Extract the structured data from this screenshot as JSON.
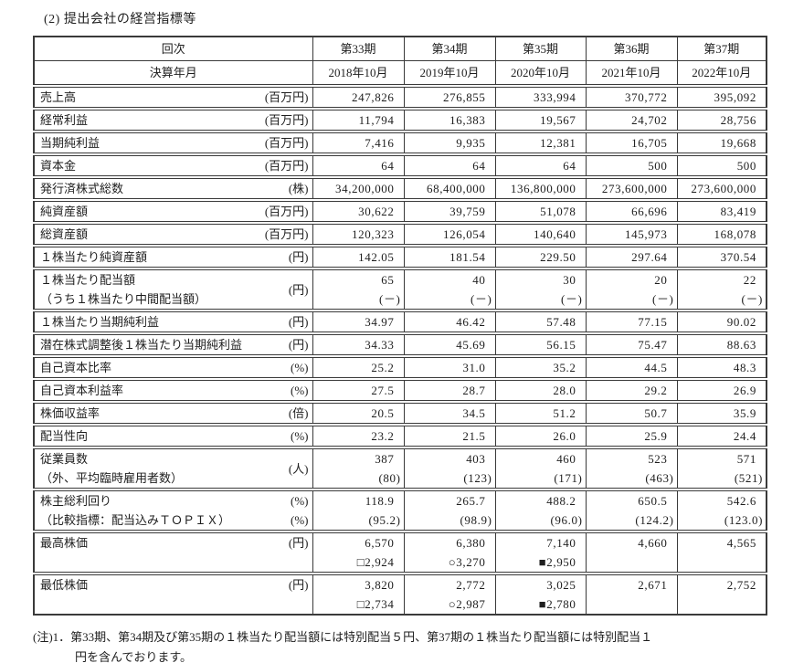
{
  "page_title": "(2) 提出会社の経営指標等",
  "table": {
    "header_rows": [
      {
        "label": "回次",
        "cells": [
          "第33期",
          "第34期",
          "第35期",
          "第36期",
          "第37期"
        ]
      },
      {
        "label": "決算年月",
        "cells": [
          "2018年10月",
          "2019年10月",
          "2020年10月",
          "2021年10月",
          "2022年10月"
        ]
      }
    ],
    "rows": [
      {
        "label": [
          "売上高"
        ],
        "unit": [
          "(百万円)"
        ],
        "values": [
          [
            "247,826"
          ],
          [
            "276,855"
          ],
          [
            "333,994"
          ],
          [
            "370,772"
          ],
          [
            "395,092"
          ]
        ]
      },
      {
        "label": [
          "経常利益"
        ],
        "unit": [
          "(百万円)"
        ],
        "values": [
          [
            "11,794"
          ],
          [
            "16,383"
          ],
          [
            "19,567"
          ],
          [
            "24,702"
          ],
          [
            "28,756"
          ]
        ]
      },
      {
        "label": [
          "当期純利益"
        ],
        "unit": [
          "(百万円)"
        ],
        "values": [
          [
            "7,416"
          ],
          [
            "9,935"
          ],
          [
            "12,381"
          ],
          [
            "16,705"
          ],
          [
            "19,668"
          ]
        ]
      },
      {
        "label": [
          "資本金"
        ],
        "unit": [
          "(百万円)"
        ],
        "values": [
          [
            "64"
          ],
          [
            "64"
          ],
          [
            "64"
          ],
          [
            "500"
          ],
          [
            "500"
          ]
        ]
      },
      {
        "label": [
          "発行済株式総数"
        ],
        "unit": [
          "(株)"
        ],
        "values": [
          [
            "34,200,000"
          ],
          [
            "68,400,000"
          ],
          [
            "136,800,000"
          ],
          [
            "273,600,000"
          ],
          [
            "273,600,000"
          ]
        ]
      },
      {
        "label": [
          "純資産額"
        ],
        "unit": [
          "(百万円)"
        ],
        "values": [
          [
            "30,622"
          ],
          [
            "39,759"
          ],
          [
            "51,078"
          ],
          [
            "66,696"
          ],
          [
            "83,419"
          ]
        ]
      },
      {
        "label": [
          "総資産額"
        ],
        "unit": [
          "(百万円)"
        ],
        "values": [
          [
            "120,323"
          ],
          [
            "126,054"
          ],
          [
            "140,640"
          ],
          [
            "145,973"
          ],
          [
            "168,078"
          ]
        ]
      },
      {
        "label": [
          "１株当たり純資産額"
        ],
        "unit": [
          "(円)"
        ],
        "values": [
          [
            "142.05"
          ],
          [
            "181.54"
          ],
          [
            "229.50"
          ],
          [
            "297.64"
          ],
          [
            "370.54"
          ]
        ]
      },
      {
        "label": [
          "１株当たり配当額",
          "（うち１株当たり中間配当額）"
        ],
        "unit": [
          "(円)"
        ],
        "unit_align": "center",
        "values": [
          [
            "65",
            "(－)"
          ],
          [
            "40",
            "(－)"
          ],
          [
            "30",
            "(－)"
          ],
          [
            "20",
            "(－)"
          ],
          [
            "22",
            "(－)"
          ]
        ]
      },
      {
        "label": [
          "１株当たり当期純利益"
        ],
        "unit": [
          "(円)"
        ],
        "values": [
          [
            "34.97"
          ],
          [
            "46.42"
          ],
          [
            "57.48"
          ],
          [
            "77.15"
          ],
          [
            "90.02"
          ]
        ]
      },
      {
        "label": [
          "潜在株式調整後１株当たり当期純利益"
        ],
        "unit": [
          "(円)"
        ],
        "values": [
          [
            "34.33"
          ],
          [
            "45.69"
          ],
          [
            "56.15"
          ],
          [
            "75.47"
          ],
          [
            "88.63"
          ]
        ]
      },
      {
        "label": [
          "自己資本比率"
        ],
        "unit": [
          "(%)"
        ],
        "values": [
          [
            "25.2"
          ],
          [
            "31.0"
          ],
          [
            "35.2"
          ],
          [
            "44.5"
          ],
          [
            "48.3"
          ]
        ]
      },
      {
        "label": [
          "自己資本利益率"
        ],
        "unit": [
          "(%)"
        ],
        "values": [
          [
            "27.5"
          ],
          [
            "28.7"
          ],
          [
            "28.0"
          ],
          [
            "29.2"
          ],
          [
            "26.9"
          ]
        ]
      },
      {
        "label": [
          "株価収益率"
        ],
        "unit": [
          "(倍)"
        ],
        "values": [
          [
            "20.5"
          ],
          [
            "34.5"
          ],
          [
            "51.2"
          ],
          [
            "50.7"
          ],
          [
            "35.9"
          ]
        ]
      },
      {
        "label": [
          "配当性向"
        ],
        "unit": [
          "(%)"
        ],
        "values": [
          [
            "23.2"
          ],
          [
            "21.5"
          ],
          [
            "26.0"
          ],
          [
            "25.9"
          ],
          [
            "24.4"
          ]
        ]
      },
      {
        "label": [
          "従業員数",
          "（外、平均臨時雇用者数）"
        ],
        "unit": [
          "(人)"
        ],
        "unit_align": "center",
        "values": [
          [
            "387",
            "(80)"
          ],
          [
            "403",
            "(123)"
          ],
          [
            "460",
            "(171)"
          ],
          [
            "523",
            "(463)"
          ],
          [
            "571",
            "(521)"
          ]
        ]
      },
      {
        "label": [
          "株主総利回り",
          "（比較指標：配当込みＴＯＰＩＸ）"
        ],
        "unit": [
          "(%)",
          "(%)"
        ],
        "unit_align": "lines",
        "values": [
          [
            "118.9",
            "(95.2)"
          ],
          [
            "265.7",
            "(98.9)"
          ],
          [
            "488.2",
            "(96.0)"
          ],
          [
            "650.5",
            "(124.2)"
          ],
          [
            "542.6",
            "(123.0)"
          ]
        ]
      },
      {
        "label": [
          "最高株価"
        ],
        "unit": [
          "(円)"
        ],
        "unit_align": "top",
        "values": [
          [
            "6,570",
            "□2,924"
          ],
          [
            "6,380",
            "○3,270"
          ],
          [
            "7,140",
            "■2,950"
          ],
          [
            "4,660",
            ""
          ],
          [
            "4,565",
            ""
          ]
        ]
      },
      {
        "label": [
          "最低株価"
        ],
        "unit": [
          "(円)"
        ],
        "unit_align": "top",
        "values": [
          [
            "3,820",
            "□2,734"
          ],
          [
            "2,772",
            "○2,987"
          ],
          [
            "3,025",
            "■2,780"
          ],
          [
            "2,671",
            ""
          ],
          [
            "2,752",
            ""
          ]
        ]
      }
    ]
  },
  "footnote": {
    "marker": "(注)1．",
    "line1": "第33期、第34期及び第35期の１株当たり配当額には特別配当５円、第37期の１株当たり配当額には特別配当１",
    "line2": "円を含んでおります。"
  }
}
